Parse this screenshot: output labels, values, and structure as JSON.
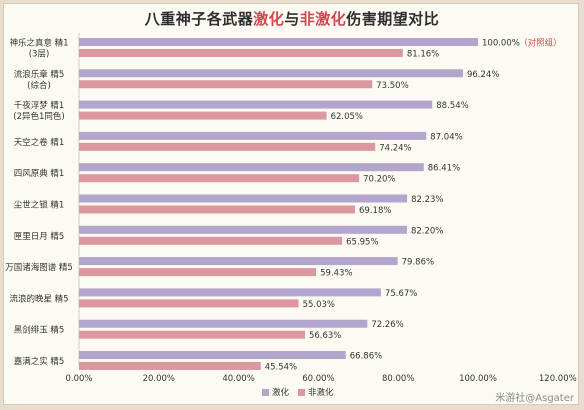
{
  "chart_data": {
    "type": "bar",
    "orientation": "horizontal",
    "title_parts": [
      "八重神子各武器",
      "激化",
      "与",
      "非激化",
      "伤害期望对比"
    ],
    "categories": [
      [
        "神乐之真意 精1",
        "(3层)"
      ],
      [
        "流浪乐章 精5",
        "(综合)"
      ],
      [
        "千夜浮梦 精1",
        "(2异色1同色)"
      ],
      [
        "天空之卷 精1"
      ],
      [
        "四风原典 精1"
      ],
      [
        "尘世之锁 精1"
      ],
      [
        "匣里日月 精5"
      ],
      [
        "万国诸海图谱 精5"
      ],
      [
        "流浪的晚星 精5"
      ],
      [
        "黑剑绯玉 精5"
      ],
      [
        "嘉满之实 精5"
      ]
    ],
    "series": [
      {
        "name": "激化",
        "color": "#b3a6cc",
        "values": [
          100.0,
          96.24,
          88.54,
          87.04,
          86.41,
          82.23,
          82.2,
          79.86,
          75.67,
          72.26,
          66.86
        ]
      },
      {
        "name": "非激化",
        "color": "#dc98a1",
        "values": [
          81.16,
          73.5,
          62.05,
          74.24,
          70.2,
          69.18,
          65.95,
          59.43,
          55.03,
          56.63,
          45.54
        ]
      }
    ],
    "value_labels": {
      "激化": [
        "100.00%",
        "96.24%",
        "88.54%",
        "87.04%",
        "86.41%",
        "82.23%",
        "82.20%",
        "79.86%",
        "75.67%",
        "72.26%",
        "66.86%"
      ],
      "非激化": [
        "81.16%",
        "73.50%",
        "62.05%",
        "74.24%",
        "70.20%",
        "69.18%",
        "65.95%",
        "59.43%",
        "55.03%",
        "56.63%",
        "45.54%"
      ]
    },
    "annotation": "（对照组）",
    "annotation_color": "#d2484f",
    "x_ticks": [
      "0.00%",
      "20.00%",
      "40.00%",
      "60.00%",
      "80.00%",
      "100.00%",
      "120.00%"
    ],
    "xlim": [
      0,
      120
    ],
    "grid": false,
    "legend_position": "bottom"
  },
  "watermark": "米游社@Asgater"
}
